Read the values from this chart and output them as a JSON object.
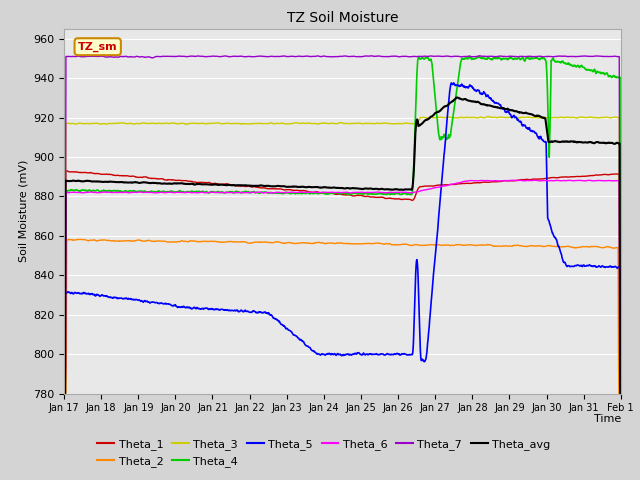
{
  "title": "TZ Soil Moisture",
  "xlabel": "Time",
  "ylabel": "Soil Moisture (mV)",
  "ylim": [
    780,
    965
  ],
  "yticks": [
    780,
    800,
    820,
    840,
    860,
    880,
    900,
    920,
    940,
    960
  ],
  "x_tick_labels": [
    "Jan 17",
    "Jan 18",
    "Jan 19",
    "Jan 20",
    "Jan 21",
    "Jan 22",
    "Jan 23",
    "Jan 24",
    "Jan 25",
    "Jan 26",
    "Jan 27",
    "Jan 28",
    "Jan 29",
    "Jan 30",
    "Jan 31",
    "Feb 1"
  ],
  "legend_label": "TZ_sm",
  "colors": {
    "Theta_1": "#cc0000",
    "Theta_2": "#ff8800",
    "Theta_3": "#cccc00",
    "Theta_4": "#00cc00",
    "Theta_5": "#0000ff",
    "Theta_6": "#ff00ff",
    "Theta_7": "#9900cc",
    "Theta_avg": "#000000"
  },
  "fig_bg": "#d4d4d4",
  "plot_bg": "#e8e8e8",
  "grid_color": "#ffffff"
}
